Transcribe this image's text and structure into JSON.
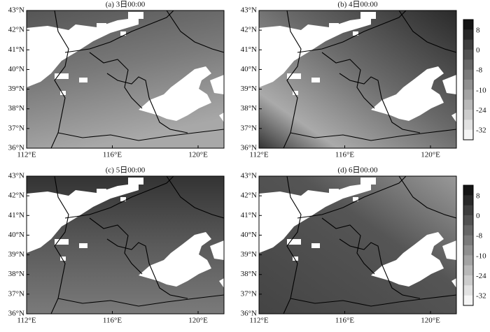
{
  "panels": [
    {
      "title": "(a) 3日00:00"
    },
    {
      "title": "(b) 4日00:00"
    },
    {
      "title": "(c) 5日00:00"
    },
    {
      "title": "(d) 6日00:00"
    }
  ],
  "lat_labels": [
    "36°N",
    "37°N",
    "38°N",
    "39°N",
    "40°N",
    "41°N",
    "42°N",
    "43°N"
  ],
  "lon_labels": [
    "112°E",
    "116°E",
    "120°E"
  ],
  "colorbars": [
    {
      "labels": [
        "8",
        "0",
        "-8",
        "-10",
        "-24",
        "-32"
      ]
    },
    {
      "labels": [
        "8",
        "0",
        "-8",
        "-10",
        "-24",
        "-32"
      ]
    }
  ]
}
